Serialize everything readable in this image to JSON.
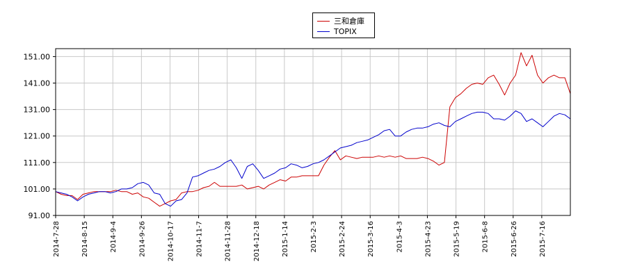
{
  "chart_data": {
    "type": "line",
    "title": "",
    "xlabel": "",
    "ylabel": "",
    "ylim": [
      91.0,
      154.0
    ],
    "yticks": [
      "91.00",
      "101.00",
      "111.00",
      "121.00",
      "131.00",
      "141.00",
      "151.00"
    ],
    "xticks": [
      "2014-7-28",
      "2014-8-15",
      "2014-9-4",
      "2014-9-26",
      "2014-10-17",
      "2014-11-7",
      "2014-11-28",
      "2014-12-18",
      "2015-1-14",
      "2015-2-3",
      "2015-2-24",
      "2015-3-16",
      "2015-4-3",
      "2015-4-23",
      "2015-5-19",
      "2015-6-8",
      "2015-6-26",
      "2015-7-16"
    ],
    "grid": true,
    "legend_position": "top-center",
    "series": [
      {
        "name": "三和倉庫",
        "color": "#cc0000",
        "points": [
          [
            0,
            100.0
          ],
          [
            1,
            99.0
          ],
          [
            2,
            98.5
          ],
          [
            3,
            98.5
          ],
          [
            4,
            97.0
          ],
          [
            5,
            99.0
          ],
          [
            6,
            99.5
          ],
          [
            7,
            100.0
          ],
          [
            8,
            100.0
          ],
          [
            9,
            100.0
          ],
          [
            10,
            100.0
          ],
          [
            11,
            100.5
          ],
          [
            12,
            100.0
          ],
          [
            13,
            100.0
          ],
          [
            14,
            99.0
          ],
          [
            15,
            99.5
          ],
          [
            16,
            98.0
          ],
          [
            17,
            97.5
          ],
          [
            18,
            96.0
          ],
          [
            19,
            94.5
          ],
          [
            20,
            95.5
          ],
          [
            21,
            96.5
          ],
          [
            22,
            97.0
          ],
          [
            23,
            99.5
          ],
          [
            24,
            100.0
          ],
          [
            25,
            100.0
          ],
          [
            26,
            100.5
          ],
          [
            27,
            101.5
          ],
          [
            28,
            102.0
          ],
          [
            29,
            103.5
          ],
          [
            30,
            102.0
          ],
          [
            31,
            102.0
          ],
          [
            32,
            102.0
          ],
          [
            33,
            102.0
          ],
          [
            34,
            102.5
          ],
          [
            35,
            101.0
          ],
          [
            36,
            101.5
          ],
          [
            37,
            102.0
          ],
          [
            38,
            101.0
          ],
          [
            39,
            102.5
          ],
          [
            40,
            103.5
          ],
          [
            41,
            104.5
          ],
          [
            42,
            104.0
          ],
          [
            43,
            105.5
          ],
          [
            44,
            105.5
          ],
          [
            45,
            106.0
          ],
          [
            46,
            106.0
          ],
          [
            47,
            106.0
          ],
          [
            48,
            106.0
          ],
          [
            49,
            110.0
          ],
          [
            50,
            113.0
          ],
          [
            51,
            115.5
          ],
          [
            52,
            112.0
          ],
          [
            53,
            113.5
          ],
          [
            54,
            113.0
          ],
          [
            55,
            112.5
          ],
          [
            56,
            113.0
          ],
          [
            57,
            113.0
          ],
          [
            58,
            113.0
          ],
          [
            59,
            113.5
          ],
          [
            60,
            113.0
          ],
          [
            61,
            113.5
          ],
          [
            62,
            113.0
          ],
          [
            63,
            113.5
          ],
          [
            64,
            112.5
          ],
          [
            65,
            112.5
          ],
          [
            66,
            112.5
          ],
          [
            67,
            113.0
          ],
          [
            68,
            112.5
          ],
          [
            69,
            111.5
          ],
          [
            70,
            110.0
          ],
          [
            71,
            111.0
          ],
          [
            72,
            132.0
          ],
          [
            73,
            135.5
          ],
          [
            74,
            137.0
          ],
          [
            75,
            139.0
          ],
          [
            76,
            140.5
          ],
          [
            77,
            141.0
          ],
          [
            78,
            140.5
          ],
          [
            79,
            143.0
          ],
          [
            80,
            144.0
          ],
          [
            81,
            140.5
          ],
          [
            82,
            136.5
          ],
          [
            83,
            141.0
          ],
          [
            84,
            144.0
          ],
          [
            85,
            152.5
          ],
          [
            86,
            147.5
          ],
          [
            87,
            151.5
          ],
          [
            88,
            144.0
          ],
          [
            89,
            141.0
          ],
          [
            90,
            143.0
          ],
          [
            91,
            144.0
          ],
          [
            92,
            143.0
          ],
          [
            93,
            143.0
          ],
          [
            94,
            137.0
          ]
        ]
      },
      {
        "name": "TOPIX",
        "color": "#0000cc",
        "points": [
          [
            0,
            100.0
          ],
          [
            1,
            99.5
          ],
          [
            2,
            99.0
          ],
          [
            3,
            98.0
          ],
          [
            4,
            96.5
          ],
          [
            5,
            98.0
          ],
          [
            6,
            99.0
          ],
          [
            7,
            99.5
          ],
          [
            8,
            100.0
          ],
          [
            9,
            100.0
          ],
          [
            10,
            99.5
          ],
          [
            11,
            100.0
          ],
          [
            12,
            101.0
          ],
          [
            13,
            101.0
          ],
          [
            14,
            101.5
          ],
          [
            15,
            103.0
          ],
          [
            16,
            103.5
          ],
          [
            17,
            102.5
          ],
          [
            18,
            99.5
          ],
          [
            19,
            99.0
          ],
          [
            20,
            95.5
          ],
          [
            21,
            94.5
          ],
          [
            22,
            96.5
          ],
          [
            23,
            97.0
          ],
          [
            24,
            99.5
          ],
          [
            25,
            105.5
          ],
          [
            26,
            106.0
          ],
          [
            27,
            107.0
          ],
          [
            28,
            108.0
          ],
          [
            29,
            108.5
          ],
          [
            30,
            109.5
          ],
          [
            31,
            111.0
          ],
          [
            32,
            112.0
          ],
          [
            33,
            109.0
          ],
          [
            34,
            105.0
          ],
          [
            35,
            109.5
          ],
          [
            36,
            110.5
          ],
          [
            37,
            108.0
          ],
          [
            38,
            105.0
          ],
          [
            39,
            106.0
          ],
          [
            40,
            107.0
          ],
          [
            41,
            108.5
          ],
          [
            42,
            109.0
          ],
          [
            43,
            110.5
          ],
          [
            44,
            110.0
          ],
          [
            45,
            109.0
          ],
          [
            46,
            109.5
          ],
          [
            47,
            110.5
          ],
          [
            48,
            111.0
          ],
          [
            49,
            112.0
          ],
          [
            50,
            113.5
          ],
          [
            51,
            115.0
          ],
          [
            52,
            116.5
          ],
          [
            53,
            117.0
          ],
          [
            54,
            117.5
          ],
          [
            55,
            118.5
          ],
          [
            56,
            119.0
          ],
          [
            57,
            119.5
          ],
          [
            58,
            120.5
          ],
          [
            59,
            121.5
          ],
          [
            60,
            123.0
          ],
          [
            61,
            123.5
          ],
          [
            62,
            121.0
          ],
          [
            63,
            121.0
          ],
          [
            64,
            122.5
          ],
          [
            65,
            123.5
          ],
          [
            66,
            124.0
          ],
          [
            67,
            124.0
          ],
          [
            68,
            124.5
          ],
          [
            69,
            125.5
          ],
          [
            70,
            126.0
          ],
          [
            71,
            125.0
          ],
          [
            72,
            124.5
          ],
          [
            73,
            126.5
          ],
          [
            74,
            127.5
          ],
          [
            75,
            128.5
          ],
          [
            76,
            129.5
          ],
          [
            77,
            130.0
          ],
          [
            78,
            130.0
          ],
          [
            79,
            129.5
          ],
          [
            80,
            127.5
          ],
          [
            81,
            127.5
          ],
          [
            82,
            127.0
          ],
          [
            83,
            128.5
          ],
          [
            84,
            130.5
          ],
          [
            85,
            129.5
          ],
          [
            86,
            126.5
          ],
          [
            87,
            127.5
          ],
          [
            88,
            126.0
          ],
          [
            89,
            124.5
          ],
          [
            90,
            126.5
          ],
          [
            91,
            128.5
          ],
          [
            92,
            129.5
          ],
          [
            93,
            129.0
          ],
          [
            94,
            127.5
          ]
        ]
      }
    ]
  }
}
